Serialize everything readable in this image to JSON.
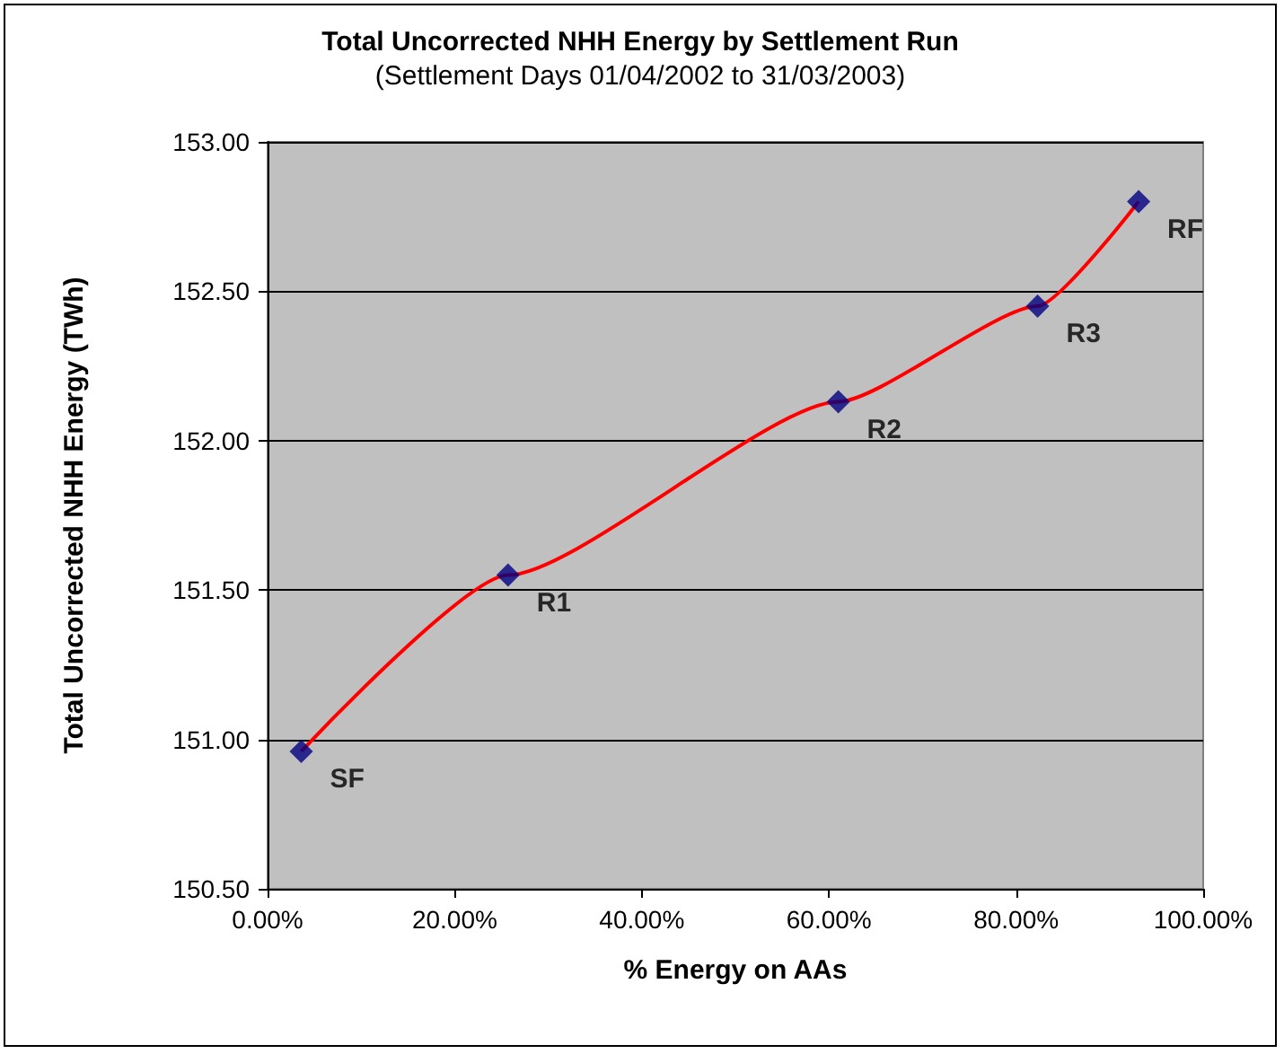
{
  "chart_data": {
    "type": "line",
    "title": "Total Uncorrected NHH Energy by Settlement Run",
    "subtitle": "(Settlement Days 01/04/2002 to 31/03/2003)",
    "xlabel": "% Energy on AAs",
    "ylabel": "Total Uncorrected NHH Energy (TWh)",
    "x": [
      3.6,
      25.7,
      61.0,
      82.3,
      93.1
    ],
    "series": [
      {
        "color": "#ff0000",
        "marker": "none",
        "values": [
          150.96,
          151.55,
          152.13,
          152.45,
          152.8
        ]
      },
      {
        "type": "scatter",
        "color": "#000080",
        "marker": "diamond",
        "values": [
          150.96,
          151.55,
          152.13,
          152.45,
          152.8
        ]
      }
    ],
    "annotations": [
      {
        "text": "SF",
        "x": 3.6,
        "y": 150.96
      },
      {
        "text": "R1",
        "x": 25.7,
        "y": 151.55
      },
      {
        "text": "R2",
        "x": 61.0,
        "y": 152.13
      },
      {
        "text": "R3",
        "x": 82.3,
        "y": 152.45
      },
      {
        "text": "RF",
        "x": 93.1,
        "y": 152.8
      }
    ],
    "xlim": [
      0,
      100
    ],
    "xticks": [
      {
        "value": 0,
        "label": "0.00%"
      },
      {
        "value": 20,
        "label": "20.00%"
      },
      {
        "value": 40,
        "label": "40.00%"
      },
      {
        "value": 60,
        "label": "60.00%"
      },
      {
        "value": 80,
        "label": "80.00%"
      },
      {
        "value": 100,
        "label": "100.00%"
      }
    ],
    "ylim": [
      150.5,
      153
    ],
    "yticks": [
      {
        "value": 150.5,
        "label": "150.50"
      },
      {
        "value": 151,
        "label": "151.00"
      },
      {
        "value": 151.5,
        "label": "151.50"
      },
      {
        "value": 152,
        "label": "152.00"
      },
      {
        "value": 152.5,
        "label": "152.50"
      },
      {
        "value": 153,
        "label": "153.00"
      }
    ],
    "grid": "y"
  }
}
